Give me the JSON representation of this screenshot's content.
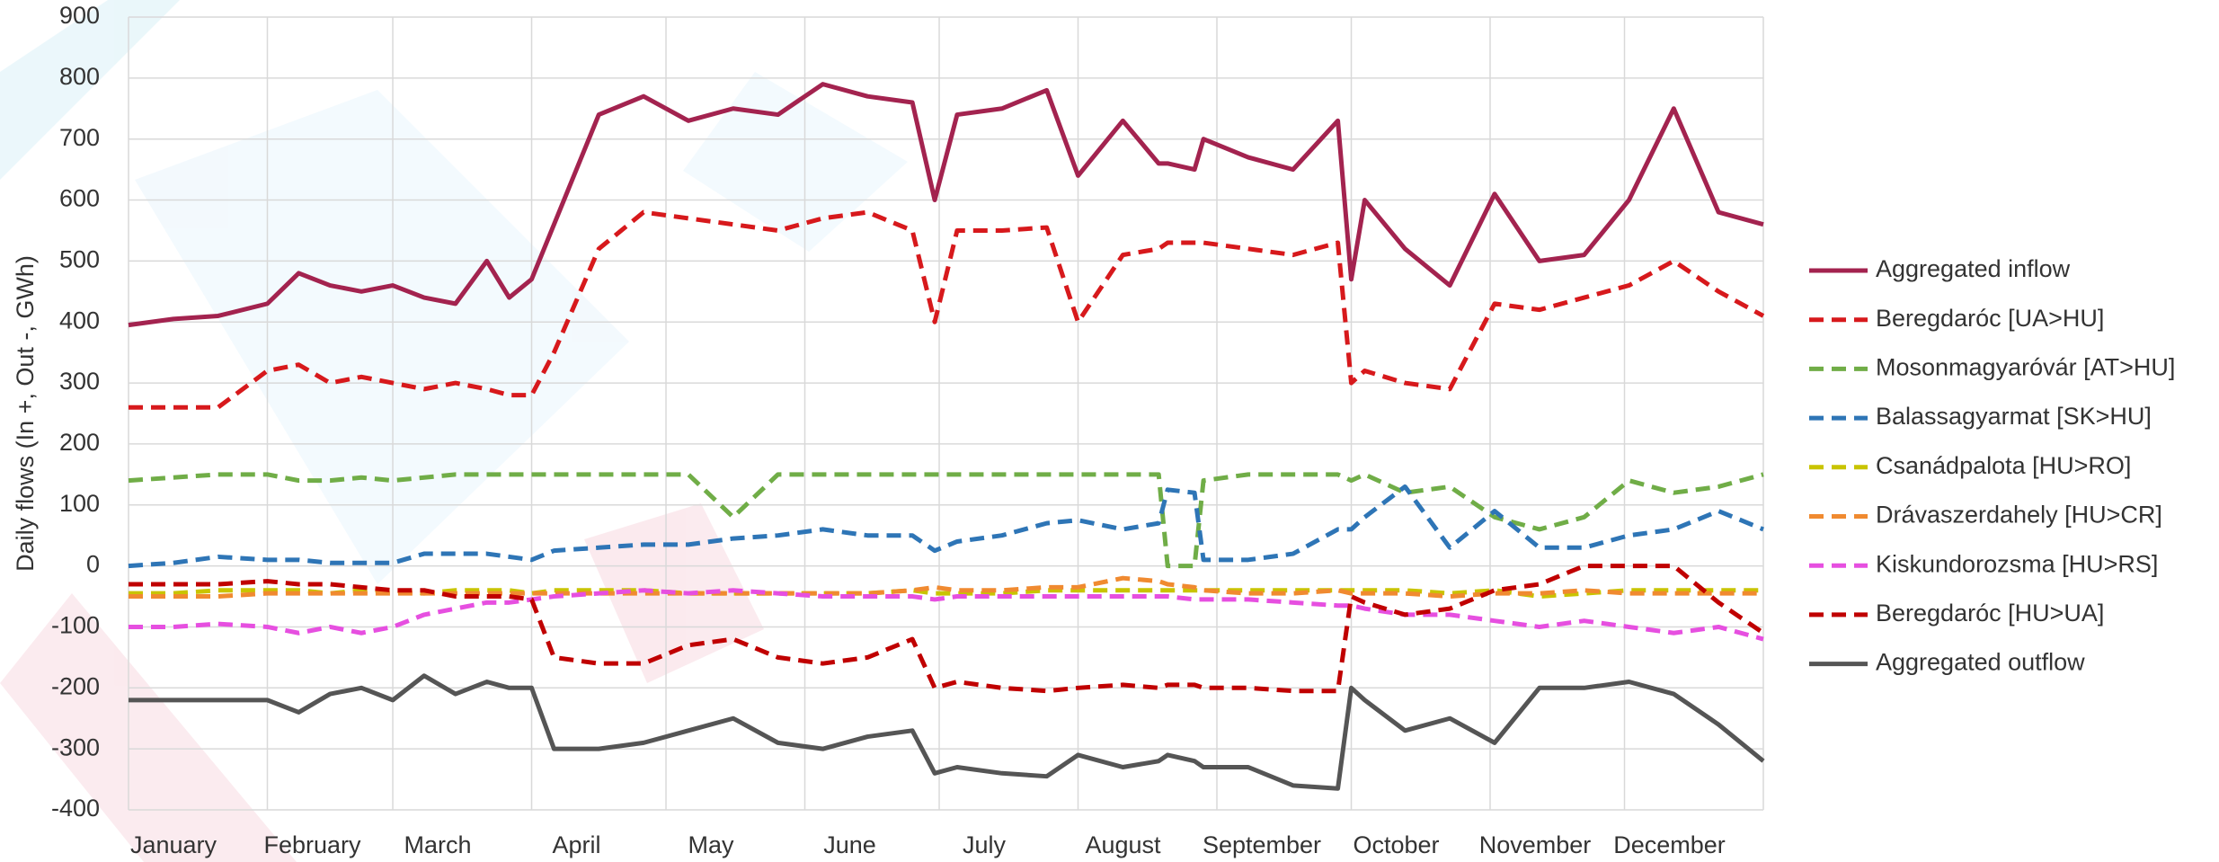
{
  "chart_data": {
    "type": "line",
    "y_label": "Daily flows (In +, Out -, GWh)",
    "grid": true,
    "legend": "right",
    "xlim": [
      0,
      365
    ],
    "xticks": [
      {
        "value": 0,
        "label": "January"
      },
      {
        "value": 31,
        "label": "February"
      },
      {
        "value": 59,
        "label": "March"
      },
      {
        "value": 90,
        "label": "April"
      },
      {
        "value": 120,
        "label": "May"
      },
      {
        "value": 151,
        "label": "June"
      },
      {
        "value": 181,
        "label": "July"
      },
      {
        "value": 212,
        "label": "August"
      },
      {
        "value": 243,
        "label": "September"
      },
      {
        "value": 273,
        "label": "October"
      },
      {
        "value": 304,
        "label": "November"
      },
      {
        "value": 334,
        "label": "December"
      }
    ],
    "ylim": [
      -400,
      900
    ],
    "yticks": [
      -400,
      -300,
      -200,
      -100,
      0,
      100,
      200,
      300,
      400,
      500,
      600,
      700,
      800,
      900
    ],
    "x": [
      0,
      10,
      20,
      31,
      38,
      45,
      52,
      59,
      66,
      73,
      80,
      85,
      90,
      95,
      105,
      115,
      125,
      135,
      145,
      155,
      165,
      175,
      180,
      185,
      195,
      205,
      212,
      222,
      230,
      232,
      238,
      240,
      250,
      260,
      270,
      273,
      276,
      285,
      295,
      305,
      315,
      325,
      335,
      345,
      355,
      365
    ],
    "series": [
      {
        "name": "Aggregated inflow",
        "color": "#a3234f",
        "dashed": false,
        "values": [
          395,
          405,
          410,
          430,
          480,
          460,
          450,
          460,
          440,
          430,
          500,
          440,
          470,
          560,
          740,
          770,
          730,
          750,
          740,
          790,
          770,
          760,
          600,
          740,
          750,
          780,
          640,
          730,
          660,
          660,
          650,
          700,
          670,
          650,
          730,
          470,
          600,
          520,
          460,
          610,
          500,
          510,
          600,
          750,
          580,
          560
        ]
      },
      {
        "name": "Beregdaróc [UA>HU]",
        "color": "#d7191c",
        "dashed": true,
        "values": [
          260,
          260,
          260,
          320,
          330,
          300,
          310,
          300,
          290,
          300,
          290,
          280,
          280,
          350,
          520,
          580,
          570,
          560,
          550,
          570,
          580,
          550,
          400,
          550,
          550,
          555,
          400,
          510,
          520,
          530,
          530,
          530,
          520,
          510,
          530,
          300,
          320,
          300,
          290,
          430,
          420,
          440,
          460,
          500,
          450,
          410
        ]
      },
      {
        "name": "Mosonmagyaróvár [AT>HU]",
        "color": "#70ad47",
        "dashed": true,
        "values": [
          140,
          145,
          150,
          150,
          140,
          140,
          145,
          140,
          145,
          150,
          150,
          150,
          150,
          150,
          150,
          150,
          150,
          80,
          150,
          150,
          150,
          150,
          150,
          150,
          150,
          150,
          150,
          150,
          150,
          0,
          0,
          140,
          150,
          150,
          150,
          140,
          150,
          120,
          130,
          80,
          60,
          80,
          140,
          120,
          130,
          150
        ]
      },
      {
        "name": "Balassagyarmat [SK>HU]",
        "color": "#2e75b6",
        "dashed": true,
        "values": [
          0,
          5,
          15,
          10,
          10,
          5,
          5,
          5,
          20,
          20,
          20,
          15,
          10,
          25,
          30,
          35,
          35,
          45,
          50,
          60,
          50,
          50,
          25,
          40,
          50,
          70,
          75,
          60,
          70,
          125,
          120,
          10,
          10,
          20,
          60,
          60,
          80,
          130,
          30,
          90,
          30,
          30,
          50,
          60,
          90,
          60
        ]
      },
      {
        "name": "Csanádpalota [HU>RO]",
        "color": "#c9c400",
        "dashed": true,
        "values": [
          -45,
          -45,
          -40,
          -40,
          -40,
          -45,
          -40,
          -40,
          -45,
          -40,
          -40,
          -40,
          -45,
          -40,
          -40,
          -40,
          -45,
          -45,
          -45,
          -45,
          -45,
          -40,
          -45,
          -45,
          -45,
          -40,
          -40,
          -40,
          -40,
          -40,
          -40,
          -40,
          -40,
          -40,
          -40,
          -40,
          -40,
          -40,
          -45,
          -40,
          -50,
          -45,
          -40,
          -40,
          -40,
          -40
        ]
      },
      {
        "name": "Drávaszerdahely [HU>CR]",
        "color": "#f08a30",
        "dashed": true,
        "values": [
          -50,
          -50,
          -50,
          -45,
          -45,
          -45,
          -45,
          -45,
          -45,
          -45,
          -45,
          -45,
          -45,
          -45,
          -45,
          -45,
          -45,
          -45,
          -45,
          -45,
          -45,
          -40,
          -35,
          -40,
          -40,
          -35,
          -35,
          -20,
          -25,
          -30,
          -35,
          -40,
          -45,
          -45,
          -40,
          -45,
          -45,
          -45,
          -50,
          -45,
          -45,
          -40,
          -45,
          -45,
          -45,
          -45
        ]
      },
      {
        "name": "Kiskundorozsma [HU>RS]",
        "color": "#e64fe0",
        "dashed": true,
        "values": [
          -100,
          -100,
          -95,
          -100,
          -110,
          -100,
          -110,
          -100,
          -80,
          -70,
          -60,
          -60,
          -55,
          -50,
          -45,
          -40,
          -45,
          -40,
          -45,
          -50,
          -50,
          -50,
          -55,
          -50,
          -50,
          -50,
          -50,
          -50,
          -50,
          -50,
          -55,
          -55,
          -55,
          -60,
          -65,
          -65,
          -70,
          -80,
          -80,
          -90,
          -100,
          -90,
          -100,
          -110,
          -100,
          -120
        ]
      },
      {
        "name": "Beregdaróc [HU>UA]",
        "color": "#c00000",
        "dashed": true,
        "values": [
          -30,
          -30,
          -30,
          -25,
          -30,
          -30,
          -35,
          -40,
          -40,
          -50,
          -50,
          -50,
          -55,
          -150,
          -160,
          -160,
          -130,
          -120,
          -150,
          -160,
          -150,
          -120,
          -200,
          -190,
          -200,
          -205,
          -200,
          -195,
          -200,
          -195,
          -195,
          -200,
          -200,
          -205,
          -205,
          -50,
          -60,
          -80,
          -70,
          -40,
          -30,
          0,
          0,
          0,
          -60,
          -110
        ]
      },
      {
        "name": "Aggregated outflow",
        "color": "#555555",
        "dashed": false,
        "values": [
          -220,
          -220,
          -220,
          -220,
          -240,
          -210,
          -200,
          -220,
          -180,
          -210,
          -190,
          -200,
          -200,
          -300,
          -300,
          -290,
          -270,
          -250,
          -290,
          -300,
          -280,
          -270,
          -340,
          -330,
          -340,
          -345,
          -310,
          -330,
          -320,
          -310,
          -320,
          -330,
          -330,
          -360,
          -365,
          -200,
          -220,
          -270,
          -250,
          -290,
          -200,
          -200,
          -190,
          -210,
          -260,
          -320
        ]
      }
    ]
  }
}
